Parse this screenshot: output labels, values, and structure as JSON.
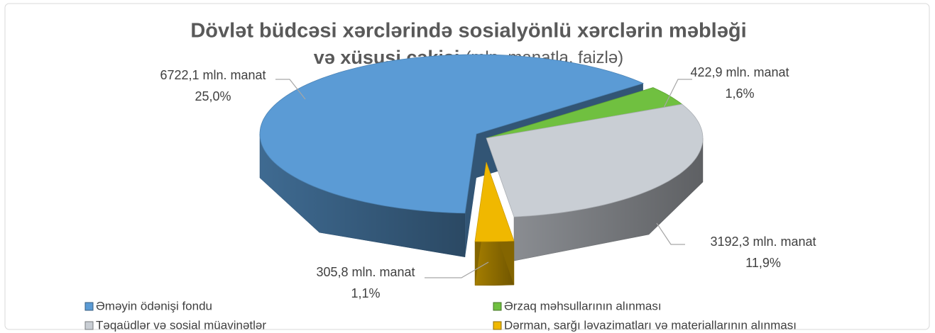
{
  "chart_data": {
    "type": "pie",
    "title": [
      "Dövlət büdcəsi xərclərində sosialyönlü xərclərin məbləği",
      "və xüsusi çəkisi"
    ],
    "subtitle": "(mln. manatla, faizlə)",
    "categories": [
      "Əməyin ödənişi fondu",
      "Ərzaq məhsullarının alınması",
      "Təqaüdlər və sosial müavinətlər",
      "Dərman, sarğı ləvazimatları və materiallarının alınması"
    ],
    "values": [
      6722.1,
      422.9,
      3192.3,
      305.8
    ],
    "value_labels": [
      "6722,1 mln. manat",
      "422,9 mln. manat",
      "3192,3 mln. manat",
      "305,8 mln. manat"
    ],
    "shares": [
      25.0,
      1.6,
      11.9,
      1.1
    ],
    "share_labels": [
      "25,0%",
      "1,6%",
      "11,9%",
      "1,1%"
    ],
    "colors": [
      "#5b9bd5",
      "#70c040",
      "#c9ced4",
      "#f0b800"
    ],
    "legend": "bottom"
  }
}
